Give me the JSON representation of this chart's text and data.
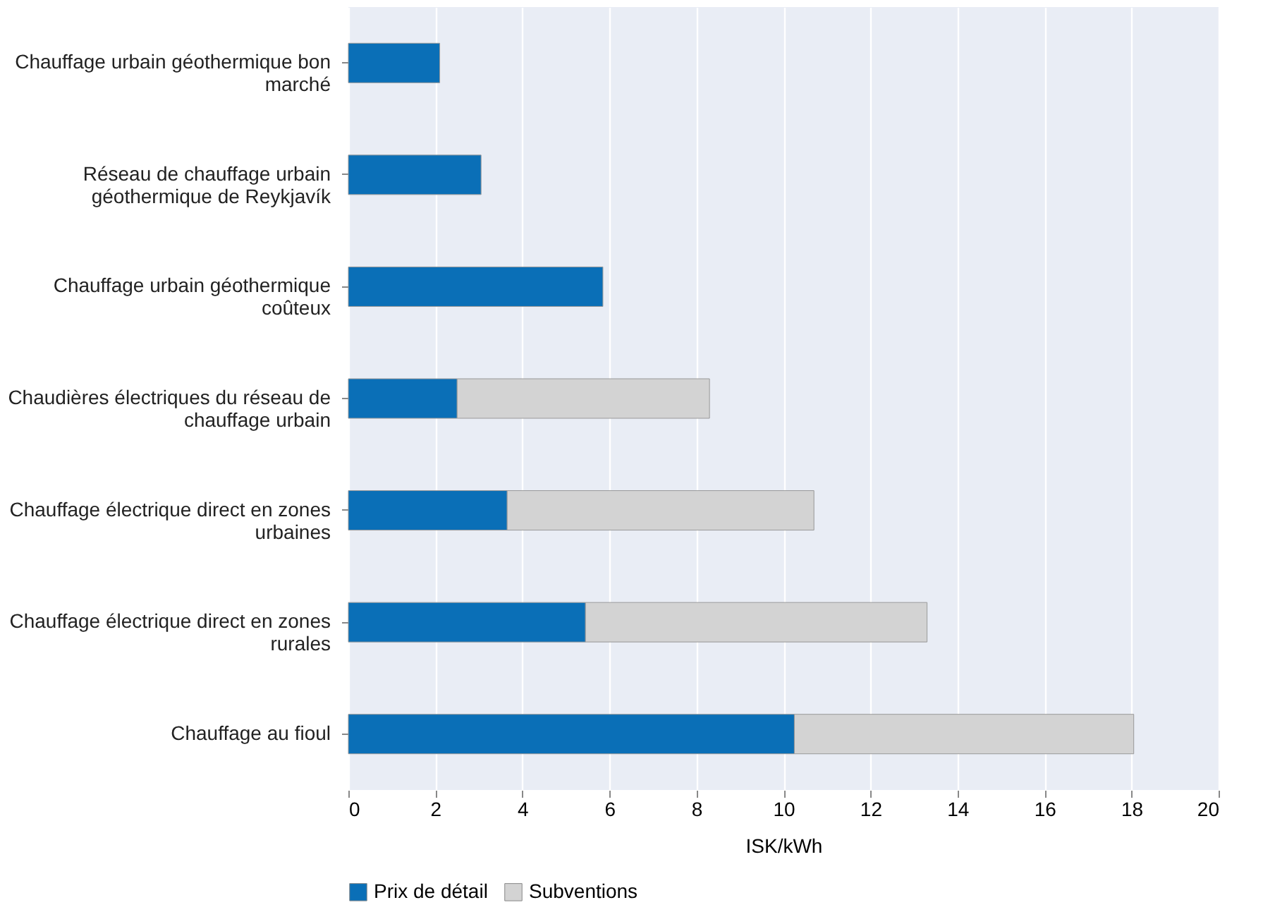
{
  "chart_data": {
    "type": "bar",
    "orientation": "horizontal",
    "stacked": true,
    "categories": [
      "Chauffage urbain géothermique bon marché",
      "Réseau de chauffage urbain géothermique de Reykjavík",
      "Chauffage urbain géothermique coûteux",
      "Chaudières électriques du réseau de chauffage urbain",
      "Chauffage électrique direct en zones urbaines",
      "Chauffage électrique direct en zones rurales",
      "Chauffage au fioul"
    ],
    "series": [
      {
        "name": "Prix de détail",
        "color": "#0a6fb7",
        "values": [
          2.1,
          3.05,
          5.85,
          2.5,
          3.65,
          5.45,
          10.25
        ]
      },
      {
        "name": "Subventions",
        "color": "#d3d3d3",
        "values": [
          null,
          null,
          null,
          5.8,
          7.05,
          7.85,
          7.8
        ]
      }
    ],
    "xlabel": "ISK/kWh",
    "xlim": [
      0,
      20
    ],
    "xticks": [
      0,
      2,
      4,
      6,
      8,
      10,
      12,
      14,
      16,
      18,
      20
    ],
    "grid": "x",
    "legend": "bottom"
  }
}
